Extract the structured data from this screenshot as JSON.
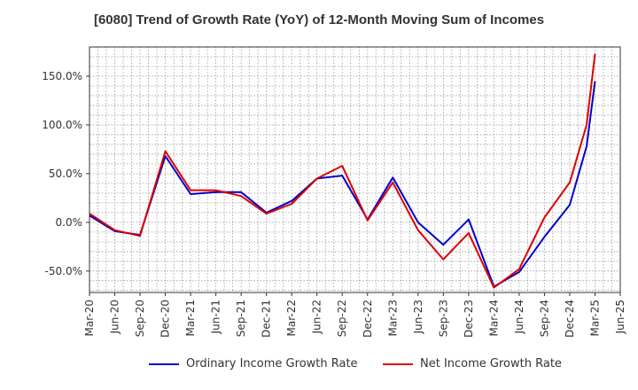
{
  "chart_data": {
    "type": "line",
    "title": "[6080]  Trend of Growth Rate (YoY) of 12-Month Moving Sum of Incomes",
    "xlabel": "",
    "ylabel": "",
    "ylim": [
      -72,
      180
    ],
    "y_ticks": [
      -50,
      0,
      50,
      100,
      150
    ],
    "y_tick_labels": [
      "-50.0%",
      "0.0%",
      "50.0%",
      "100.0%",
      "150.0%"
    ],
    "x_tick_labels": [
      "Mar-20",
      "Jun-20",
      "Sep-20",
      "Dec-20",
      "Mar-21",
      "Jun-21",
      "Sep-21",
      "Dec-21",
      "Mar-22",
      "Jun-22",
      "Sep-22",
      "Dec-22",
      "Mar-23",
      "Jun-23",
      "Sep-23",
      "Dec-23",
      "Mar-24",
      "Jun-24",
      "Sep-24",
      "Dec-24",
      "Mar-25",
      "Jun-25"
    ],
    "grid": true,
    "legend_position": "bottom",
    "x_months": [
      "Mar-20",
      "Apr-20",
      "May-20",
      "Jun-20",
      "Jul-20",
      "Aug-20",
      "Sep-20",
      "Oct-20",
      "Nov-20",
      "Dec-20",
      "Jan-21",
      "Feb-21",
      "Mar-21",
      "Apr-21",
      "May-21",
      "Jun-21",
      "Jul-21",
      "Aug-21",
      "Sep-21",
      "Oct-21",
      "Nov-21",
      "Dec-21",
      "Jan-22",
      "Feb-22",
      "Mar-22",
      "Apr-22",
      "May-22",
      "Jun-22",
      "Jul-22",
      "Aug-22",
      "Sep-22",
      "Oct-22",
      "Nov-22",
      "Dec-22",
      "Jan-23",
      "Feb-23",
      "Mar-23",
      "Apr-23",
      "May-23",
      "Jun-23",
      "Jul-23",
      "Aug-23",
      "Sep-23",
      "Oct-23",
      "Nov-23",
      "Dec-23",
      "Jan-24",
      "Feb-24",
      "Mar-24",
      "Apr-24",
      "May-24",
      "Jun-24",
      "Jul-24",
      "Aug-24",
      "Sep-24",
      "Oct-24",
      "Nov-24",
      "Dec-24",
      "Jan-25",
      "Feb-25",
      "Mar-25"
    ],
    "series": [
      {
        "name": "Ordinary Income Growth Rate",
        "color": "#0000cc",
        "values": [
          7,
          null,
          null,
          -9,
          null,
          null,
          -13,
          null,
          null,
          68,
          null,
          null,
          29,
          null,
          null,
          31,
          null,
          null,
          31,
          null,
          null,
          10,
          null,
          null,
          22,
          null,
          null,
          45,
          null,
          null,
          48,
          null,
          null,
          3,
          null,
          null,
          46,
          null,
          null,
          0,
          null,
          null,
          -23,
          null,
          null,
          3,
          null,
          null,
          -66,
          null,
          null,
          -51,
          null,
          null,
          -15,
          null,
          null,
          18,
          null,
          78,
          145
        ]
      },
      {
        "name": "Net Income Growth Rate",
        "color": "#dd0000",
        "values": [
          9,
          null,
          null,
          -8,
          null,
          null,
          -14,
          null,
          null,
          73,
          null,
          null,
          33,
          null,
          null,
          33,
          null,
          null,
          27,
          null,
          null,
          9,
          null,
          null,
          19,
          null,
          null,
          45,
          null,
          null,
          58,
          null,
          null,
          2,
          null,
          null,
          41,
          null,
          null,
          -8,
          null,
          null,
          -38,
          null,
          null,
          -11,
          null,
          null,
          -67,
          null,
          null,
          -48,
          null,
          null,
          5,
          null,
          null,
          41,
          null,
          100,
          173
        ]
      }
    ]
  }
}
